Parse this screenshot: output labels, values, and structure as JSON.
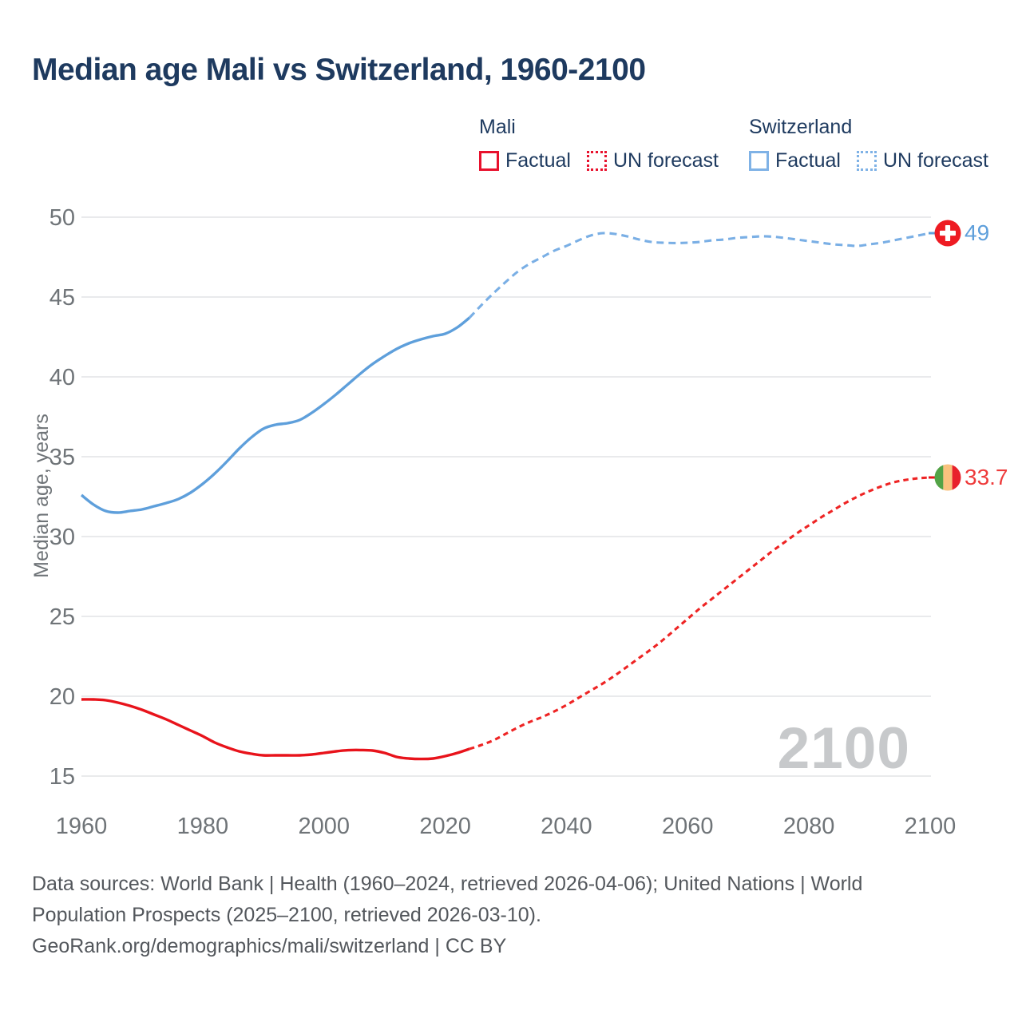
{
  "header": {
    "title": "Median age Mali vs Switzerland, 1960-2100"
  },
  "legend": {
    "groups": [
      {
        "name": "Mali",
        "color": "#E8112D",
        "items": [
          {
            "label": "Factual",
            "style": "solid"
          },
          {
            "label": "UN forecast",
            "style": "dotted"
          }
        ]
      },
      {
        "name": "Switzerland",
        "color": "#7FB2E6",
        "items": [
          {
            "label": "Factual",
            "style": "solid"
          },
          {
            "label": "UN forecast",
            "style": "dotted"
          }
        ]
      }
    ]
  },
  "chart_data": {
    "type": "line",
    "title": "Median age Mali vs Switzerland, 1960-2100",
    "xlabel": "",
    "ylabel": "Median age, years",
    "xlim": [
      1960,
      2100
    ],
    "ylim": [
      15,
      50
    ],
    "x_ticks": [
      1960,
      1980,
      2000,
      2020,
      2040,
      2060,
      2080,
      2100
    ],
    "y_ticks": [
      15,
      20,
      25,
      30,
      35,
      40,
      45,
      50
    ],
    "grid": "horizontal",
    "legend_position": "top",
    "watermark": "2100",
    "series": [
      {
        "name": "Switzerland — Factual",
        "style": "solid",
        "color": "#5E9FDB",
        "points": [
          [
            1960,
            32.6
          ],
          [
            1962,
            32.0
          ],
          [
            1964,
            31.6
          ],
          [
            1966,
            31.5
          ],
          [
            1968,
            31.6
          ],
          [
            1970,
            31.7
          ],
          [
            1972,
            31.9
          ],
          [
            1974,
            32.1
          ],
          [
            1976,
            32.35
          ],
          [
            1978,
            32.75
          ],
          [
            1980,
            33.3
          ],
          [
            1982,
            33.95
          ],
          [
            1984,
            34.7
          ],
          [
            1986,
            35.5
          ],
          [
            1988,
            36.2
          ],
          [
            1990,
            36.75
          ],
          [
            1992,
            37.0
          ],
          [
            1994,
            37.1
          ],
          [
            1996,
            37.3
          ],
          [
            1998,
            37.75
          ],
          [
            2000,
            38.3
          ],
          [
            2002,
            38.9
          ],
          [
            2004,
            39.55
          ],
          [
            2006,
            40.2
          ],
          [
            2008,
            40.8
          ],
          [
            2010,
            41.3
          ],
          [
            2012,
            41.75
          ],
          [
            2014,
            42.1
          ],
          [
            2016,
            42.35
          ],
          [
            2018,
            42.55
          ],
          [
            2020,
            42.7
          ],
          [
            2022,
            43.1
          ],
          [
            2024,
            43.7
          ]
        ]
      },
      {
        "name": "Switzerland — UN forecast",
        "style": "dashed",
        "color": "#7AAFE5",
        "points": [
          [
            2024,
            43.7
          ],
          [
            2026,
            44.5
          ],
          [
            2028,
            45.25
          ],
          [
            2030,
            45.95
          ],
          [
            2032,
            46.6
          ],
          [
            2034,
            47.1
          ],
          [
            2036,
            47.5
          ],
          [
            2038,
            47.9
          ],
          [
            2040,
            48.2
          ],
          [
            2042,
            48.55
          ],
          [
            2044,
            48.85
          ],
          [
            2046,
            49.0
          ],
          [
            2048,
            48.95
          ],
          [
            2050,
            48.8
          ],
          [
            2052,
            48.6
          ],
          [
            2054,
            48.45
          ],
          [
            2056,
            48.4
          ],
          [
            2058,
            48.38
          ],
          [
            2060,
            48.4
          ],
          [
            2062,
            48.45
          ],
          [
            2064,
            48.55
          ],
          [
            2066,
            48.6
          ],
          [
            2068,
            48.7
          ],
          [
            2070,
            48.75
          ],
          [
            2072,
            48.8
          ],
          [
            2074,
            48.78
          ],
          [
            2076,
            48.7
          ],
          [
            2078,
            48.6
          ],
          [
            2080,
            48.5
          ],
          [
            2082,
            48.4
          ],
          [
            2084,
            48.3
          ],
          [
            2086,
            48.25
          ],
          [
            2088,
            48.2
          ],
          [
            2090,
            48.3
          ],
          [
            2092,
            48.4
          ],
          [
            2094,
            48.55
          ],
          [
            2096,
            48.7
          ],
          [
            2098,
            48.85
          ],
          [
            2100,
            49.0
          ]
        ]
      },
      {
        "name": "Mali — Factual",
        "style": "solid",
        "color": "#E8131B",
        "points": [
          [
            1960,
            19.8
          ],
          [
            1962,
            19.8
          ],
          [
            1964,
            19.75
          ],
          [
            1966,
            19.6
          ],
          [
            1968,
            19.4
          ],
          [
            1970,
            19.15
          ],
          [
            1972,
            18.85
          ],
          [
            1974,
            18.55
          ],
          [
            1976,
            18.2
          ],
          [
            1978,
            17.85
          ],
          [
            1980,
            17.5
          ],
          [
            1982,
            17.1
          ],
          [
            1984,
            16.8
          ],
          [
            1986,
            16.55
          ],
          [
            1988,
            16.4
          ],
          [
            1990,
            16.3
          ],
          [
            1992,
            16.3
          ],
          [
            1994,
            16.3
          ],
          [
            1996,
            16.3
          ],
          [
            1998,
            16.35
          ],
          [
            2000,
            16.45
          ],
          [
            2002,
            16.55
          ],
          [
            2004,
            16.62
          ],
          [
            2006,
            16.63
          ],
          [
            2008,
            16.6
          ],
          [
            2010,
            16.45
          ],
          [
            2012,
            16.2
          ],
          [
            2014,
            16.1
          ],
          [
            2016,
            16.07
          ],
          [
            2018,
            16.1
          ],
          [
            2020,
            16.25
          ],
          [
            2022,
            16.45
          ],
          [
            2024,
            16.7
          ]
        ]
      },
      {
        "name": "Mali — UN forecast",
        "style": "dashed",
        "color": "#EE2424",
        "points": [
          [
            2024,
            16.7
          ],
          [
            2026,
            16.95
          ],
          [
            2028,
            17.25
          ],
          [
            2030,
            17.65
          ],
          [
            2032,
            18.05
          ],
          [
            2034,
            18.4
          ],
          [
            2036,
            18.7
          ],
          [
            2038,
            19.05
          ],
          [
            2040,
            19.45
          ],
          [
            2042,
            19.9
          ],
          [
            2044,
            20.35
          ],
          [
            2046,
            20.8
          ],
          [
            2048,
            21.3
          ],
          [
            2050,
            21.85
          ],
          [
            2052,
            22.4
          ],
          [
            2054,
            22.95
          ],
          [
            2056,
            23.55
          ],
          [
            2058,
            24.2
          ],
          [
            2060,
            24.85
          ],
          [
            2062,
            25.5
          ],
          [
            2064,
            26.1
          ],
          [
            2066,
            26.7
          ],
          [
            2068,
            27.3
          ],
          [
            2070,
            27.9
          ],
          [
            2072,
            28.5
          ],
          [
            2074,
            29.1
          ],
          [
            2076,
            29.65
          ],
          [
            2078,
            30.2
          ],
          [
            2080,
            30.7
          ],
          [
            2082,
            31.2
          ],
          [
            2084,
            31.65
          ],
          [
            2086,
            32.1
          ],
          [
            2088,
            32.5
          ],
          [
            2090,
            32.85
          ],
          [
            2092,
            33.15
          ],
          [
            2094,
            33.4
          ],
          [
            2096,
            33.55
          ],
          [
            2098,
            33.65
          ],
          [
            2100,
            33.7
          ]
        ]
      }
    ],
    "end_markers": [
      {
        "series": "Switzerland",
        "flag": "switzerland",
        "value": 49,
        "value_label": "49"
      },
      {
        "series": "Mali",
        "flag": "mali",
        "value": 33.7,
        "value_label": "33.7"
      }
    ]
  },
  "y_axis_title": "Median age, years",
  "watermark_text": "2100",
  "end_labels": {
    "switzerland": "49",
    "mali": "33.7"
  },
  "footer": {
    "lines": [
      "Data sources: World Bank | Health (1960–2024, retrieved 2026-04-06); United Nations | World",
      "Population Prospects (2025–2100, retrieved 2026-03-10).",
      "GeoRank.org/demographics/mali/switzerland | CC BY"
    ]
  },
  "colors": {
    "title_text": "#1E3A5F",
    "axis_text": "#6F7478",
    "footer_text": "#53575C",
    "gridline": "#E6E7E9",
    "watermark": "#C7C9CB",
    "mali_line": "#E8131B",
    "mali_value_label": "#EE3B3B",
    "swiss_line": "#5E9FDB",
    "swiss_value_label": "#5E9FDB",
    "mali_flag": [
      "#53A346",
      "#F9C27E",
      "#E8212B"
    ],
    "swiss_flag_red": "#EE1B23"
  }
}
